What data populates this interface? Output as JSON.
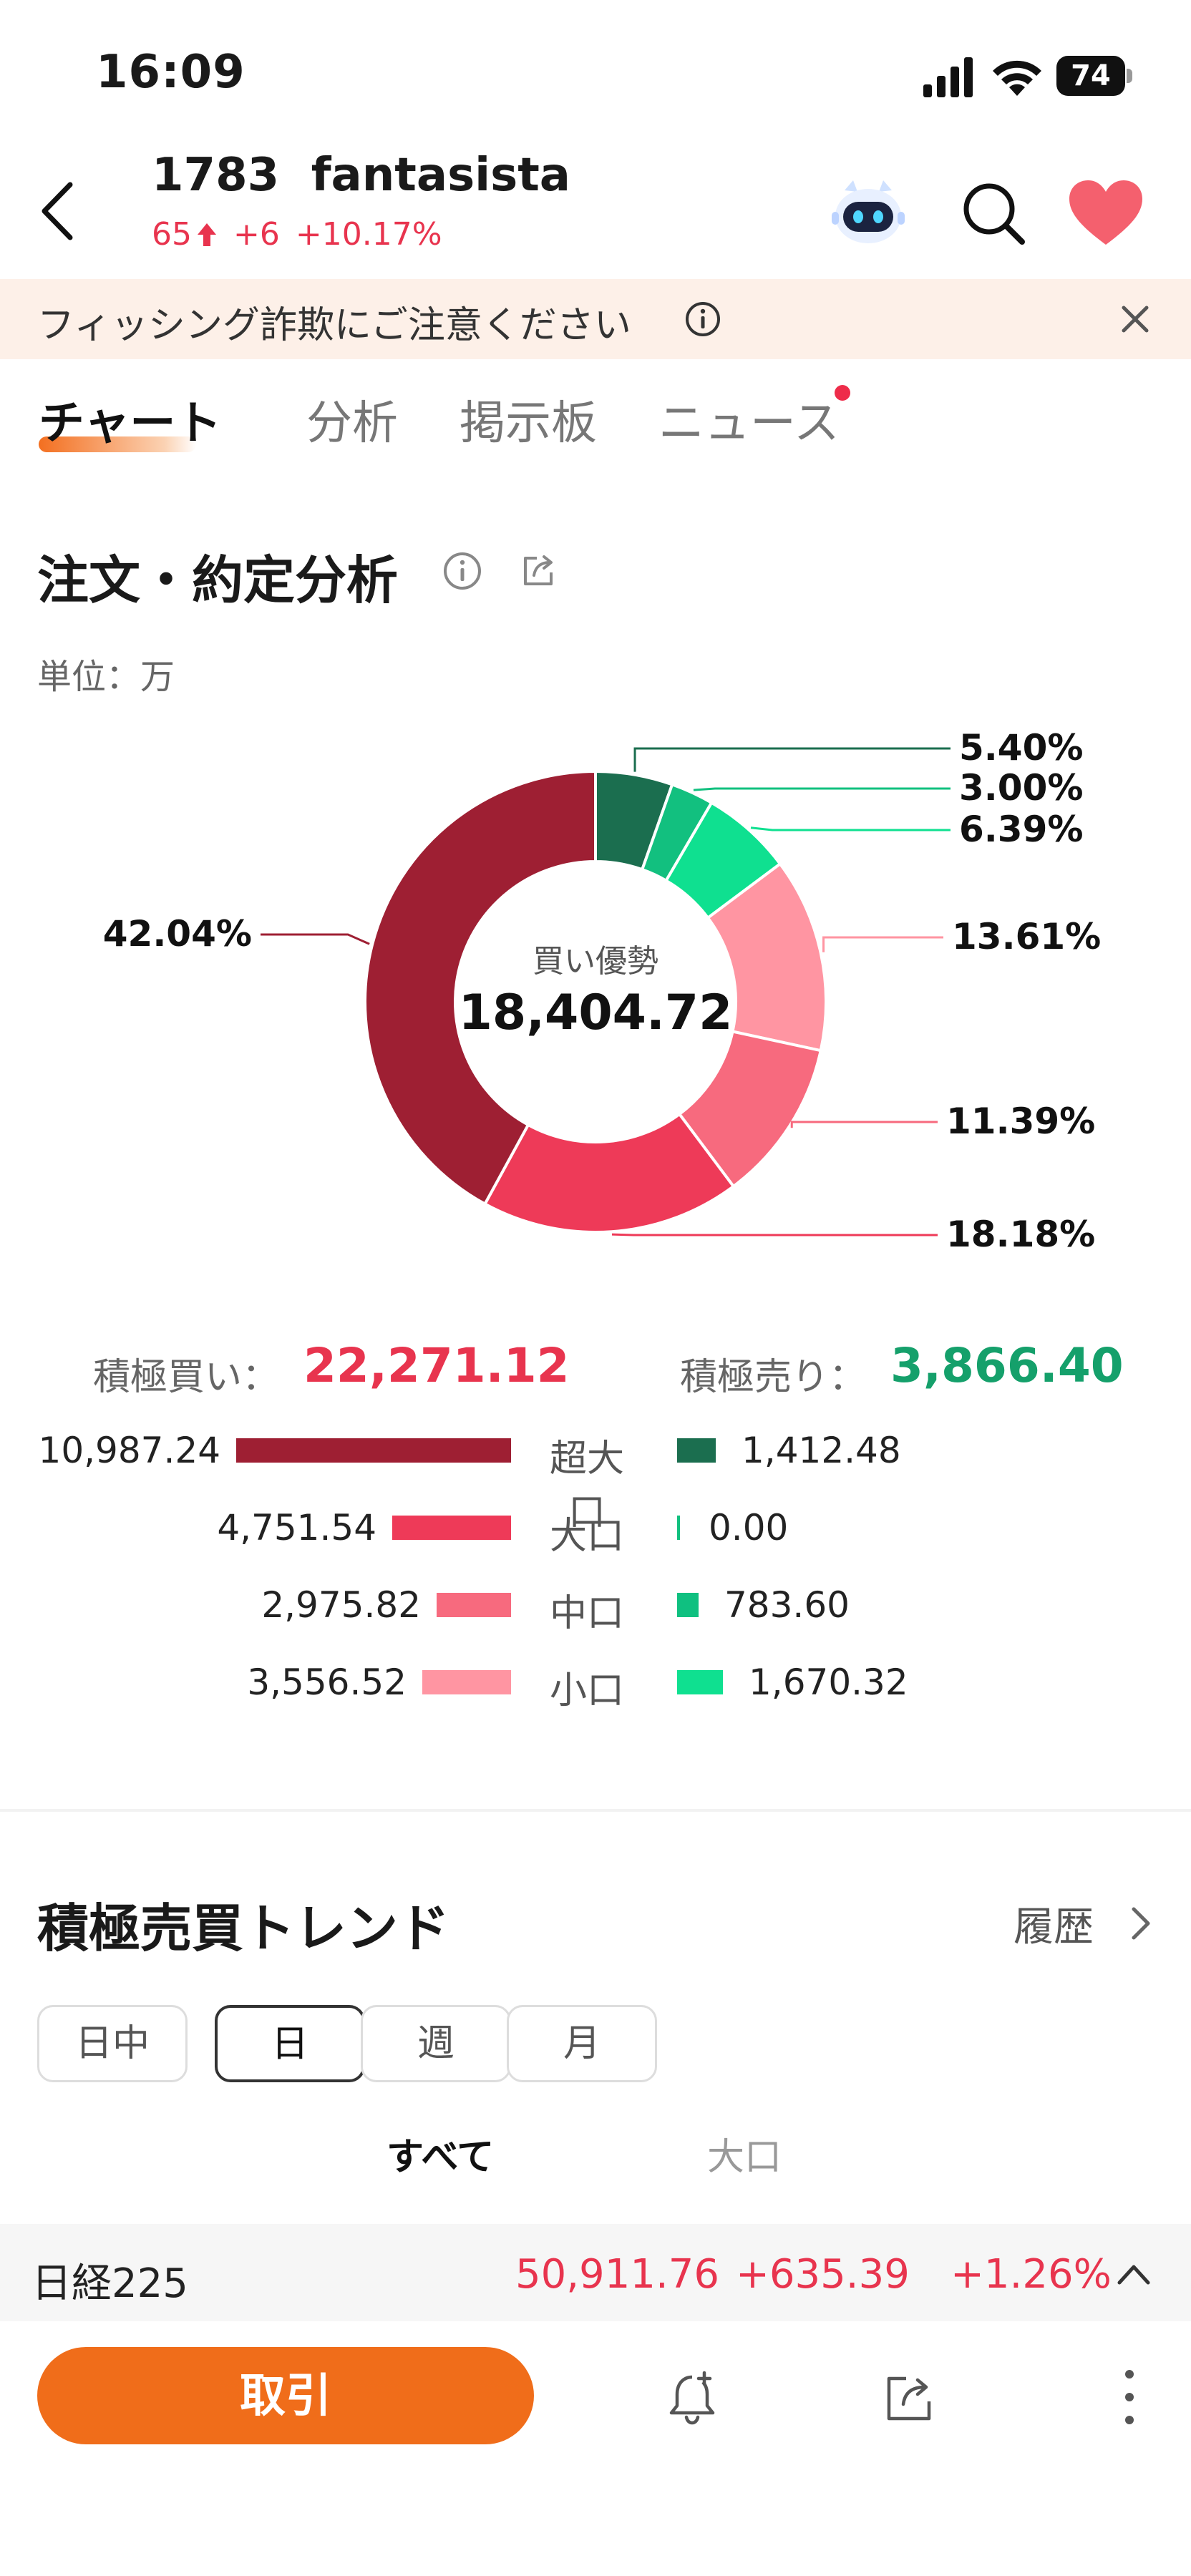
{
  "status_bar": {
    "time": "16:09",
    "battery": "74"
  },
  "header": {
    "code": "1783",
    "name": "fantasista",
    "price": "65",
    "change": "+6",
    "change_pct": "+10.17%",
    "icons": [
      "back-icon",
      "robot-icon",
      "search-icon",
      "heart-icon"
    ],
    "accent_color": "#e8344e"
  },
  "warning": {
    "text": "フィッシング詐欺にご注意ください"
  },
  "tabs": [
    {
      "label": "チャート",
      "active": true
    },
    {
      "label": "分析",
      "active": false
    },
    {
      "label": "掲示板",
      "active": false
    },
    {
      "label": "ニュース",
      "active": false,
      "badge": true
    }
  ],
  "section": {
    "title": "注文・約定分析",
    "unit": "単位：万"
  },
  "chart_data": {
    "type": "pie",
    "donut": true,
    "center_caption": "買い優勢",
    "center_value": "18,404.72",
    "slices": [
      {
        "label": "5.40%",
        "value": 5.4,
        "color": "#1b6e4f"
      },
      {
        "label": "3.00%",
        "value": 3.0,
        "color": "#12c07f"
      },
      {
        "label": "6.39%",
        "value": 6.39,
        "color": "#0fe090"
      },
      {
        "label": "13.61%",
        "value": 13.61,
        "color": "#ff95a2"
      },
      {
        "label": "11.39%",
        "value": 11.39,
        "color": "#f76a7e"
      },
      {
        "label": "18.18%",
        "value": 18.18,
        "color": "#ee3a58"
      },
      {
        "label": "42.04%",
        "value": 42.04,
        "color": "#9e1f33"
      }
    ]
  },
  "summary": {
    "buy_label": "積極買い：",
    "buy_value": "22,271.12",
    "sell_label": "積極売り：",
    "sell_value": "3,866.40",
    "buy_color": "#e8344e",
    "sell_color": "#15a06b"
  },
  "breakdown": [
    {
      "category": "超大口",
      "buy": "10,987.24",
      "buy_value": 10987.24,
      "sell": "1,412.48",
      "sell_value": 1412.48,
      "buy_color": "#9e1f33",
      "sell_color": "#1b6e4f"
    },
    {
      "category": "大口",
      "buy": "4,751.54",
      "buy_value": 4751.54,
      "sell": "0.00",
      "sell_value": 0,
      "buy_color": "#ee3a58",
      "sell_color": "#12c07f"
    },
    {
      "category": "中口",
      "buy": "2,975.82",
      "buy_value": 2975.82,
      "sell": "783.60",
      "sell_value": 783.6,
      "buy_color": "#f76a7e",
      "sell_color": "#0fc080"
    },
    {
      "category": "小口",
      "buy": "3,556.52",
      "buy_value": 3556.52,
      "sell": "1,670.32",
      "sell_value": 1670.32,
      "buy_color": "#ff95a2",
      "sell_color": "#0fe090"
    }
  ],
  "trend": {
    "title": "積極売買トレンド",
    "history": "履歴",
    "periods": [
      {
        "label": "日中",
        "active": false
      },
      {
        "label": "日",
        "active": true
      },
      {
        "label": "週",
        "active": false
      },
      {
        "label": "月",
        "active": false
      }
    ],
    "subtabs": [
      {
        "label": "すべて",
        "active": true
      },
      {
        "label": "大口",
        "active": false
      }
    ]
  },
  "index_bar": {
    "name": "日経225",
    "value": "50,911.76",
    "change": "+635.39",
    "pct": "+1.26%"
  },
  "bottom_bar": {
    "trade_label": "取引",
    "icons": [
      "bell-plus-icon",
      "share-icon",
      "more-vertical-icon"
    ]
  }
}
